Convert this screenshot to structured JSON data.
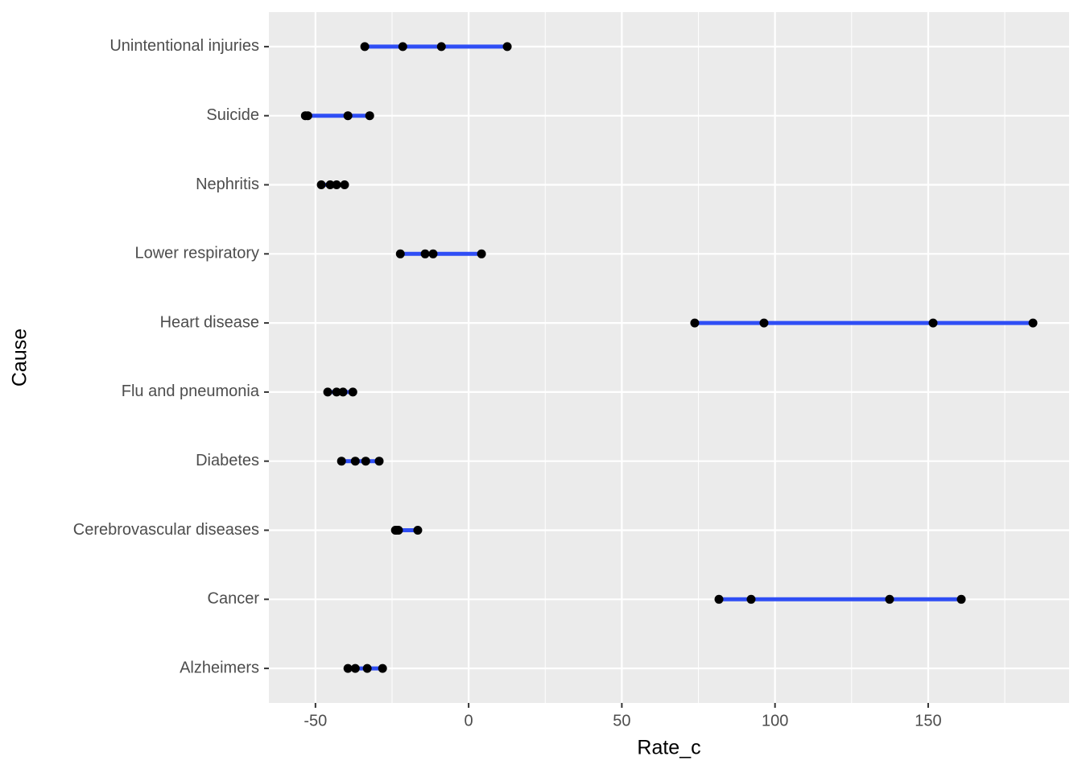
{
  "chart_data": {
    "type": "dumbbell",
    "xlabel": "Rate_c",
    "ylabel": "Cause",
    "categories": [
      "Alzheimers",
      "Cancer",
      "Cerebrovascular diseases",
      "Diabetes",
      "Flu and pneumonia",
      "Heart disease",
      "Lower respiratory",
      "Nephritis",
      "Suicide",
      "Unintentional injuries"
    ],
    "values": [
      [
        -39.4,
        -37.0,
        -33.1,
        -28.1
      ],
      [
        81.7,
        92.2,
        137.4,
        160.8
      ],
      [
        -23.9,
        -23.6,
        -22.9,
        -16.6
      ],
      [
        -41.5,
        -37.0,
        -33.6,
        -29.2
      ],
      [
        -46.0,
        -43.1,
        -41.0,
        -37.8
      ],
      [
        73.8,
        96.4,
        151.6,
        184.2
      ],
      [
        -22.3,
        -14.2,
        -11.6,
        4.2
      ],
      [
        -48.1,
        -45.2,
        -43.1,
        -40.5
      ],
      [
        -53.3,
        -52.5,
        -39.4,
        -32.3
      ],
      [
        -33.9,
        -21.5,
        -8.9,
        12.6
      ]
    ],
    "point_color": "#000000",
    "line_color": "#2f4ef5",
    "xlim": [
      -65.2,
      196.0
    ],
    "xticks": [
      -50,
      0,
      50,
      100,
      150
    ],
    "minor_xticks": [
      -25,
      25,
      75,
      125,
      175
    ],
    "grid": true
  }
}
